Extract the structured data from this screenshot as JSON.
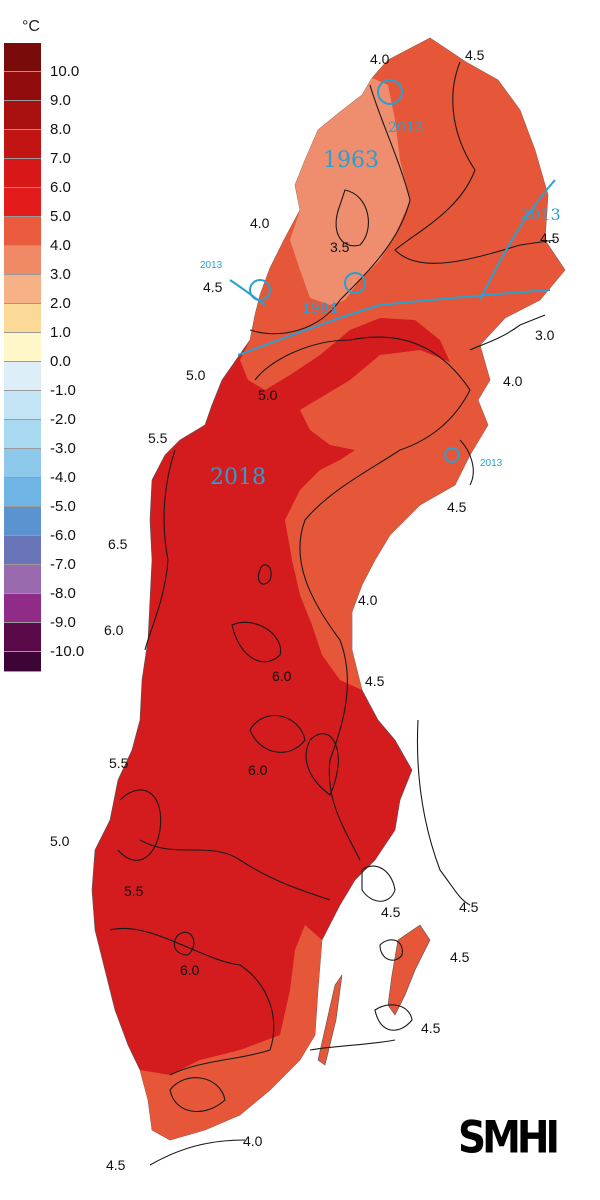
{
  "legend": {
    "unit": "°C",
    "classes": [
      {
        "label": "10.0",
        "color": "#7a0b0b"
      },
      {
        "label": "9.0",
        "color": "#910d0d"
      },
      {
        "label": "8.0",
        "color": "#a91111"
      },
      {
        "label": "7.0",
        "color": "#c31414"
      },
      {
        "label": "6.0",
        "color": "#d81818"
      },
      {
        "label": "5.0",
        "color": "#e41b1b"
      },
      {
        "label": "4.0",
        "color": "#ea5b3e"
      },
      {
        "label": "3.0",
        "color": "#f08a66"
      },
      {
        "label": "2.0",
        "color": "#f6b186"
      },
      {
        "label": "1.0",
        "color": "#fbd996"
      },
      {
        "label": "0.0",
        "color": "#fff7c8"
      },
      {
        "label": "-1.0",
        "color": "#ddeef8"
      },
      {
        "label": "-2.0",
        "color": "#c3e4f4"
      },
      {
        "label": "-3.0",
        "color": "#a9d8f1"
      },
      {
        "label": "-4.0",
        "color": "#8ec9ec"
      },
      {
        "label": "-5.0",
        "color": "#6eb4e4"
      },
      {
        "label": "-6.0",
        "color": "#5b93d0"
      },
      {
        "label": "-7.0",
        "color": "#6a74b8"
      },
      {
        "label": "-8.0",
        "color": "#9a6aae"
      },
      {
        "label": "-9.0",
        "color": "#912b88"
      },
      {
        "label": "-10.0",
        "color": "#5a0a48"
      }
    ],
    "bottom_color": "#3d0536"
  },
  "map": {
    "colors": {
      "warm": "#d41c1e",
      "mild": "#e6573a",
      "cool": "#ee8e6e",
      "record_lines": "#2a9fd0"
    },
    "isotherm_labels": [
      "4.0",
      "4.5",
      "4.0",
      "4.5",
      "3.5",
      "4.5",
      "3.0",
      "5.0",
      "5.0",
      "4.0",
      "5.5",
      "4.5",
      "6.5",
      "4.0",
      "6.0",
      "6.0",
      "4.5",
      "5.5",
      "6.0",
      "5.0",
      "5.5",
      "4.5",
      "4.5",
      "6.0",
      "4.5",
      "4.5",
      "4.0",
      "4.5"
    ],
    "record_years": [
      "1963",
      "2018",
      "2013",
      "2013",
      "1984",
      "2013",
      "2013"
    ]
  },
  "logo": "SMHI"
}
